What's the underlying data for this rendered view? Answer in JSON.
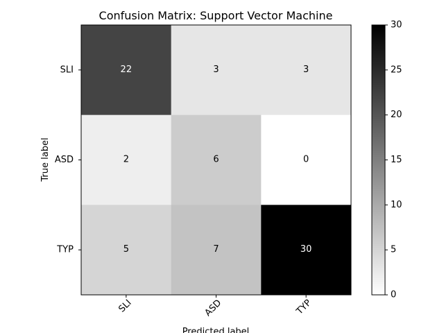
{
  "chart_data": {
    "type": "heatmap",
    "title": "Confusion Matrix: Support Vector Machine",
    "xlabel": "Predicted label",
    "ylabel": "True label",
    "x_categories": [
      "SLI",
      "ASD",
      "TYP"
    ],
    "y_categories": [
      "SLI",
      "ASD",
      "TYP"
    ],
    "values": [
      [
        22,
        3,
        3
      ],
      [
        2,
        6,
        0
      ],
      [
        5,
        7,
        30
      ]
    ],
    "colormap": "Greys",
    "colorbar": {
      "range": [
        0,
        30
      ],
      "ticks": [
        "0",
        "5",
        "10",
        "15",
        "20",
        "25",
        "30"
      ]
    }
  }
}
